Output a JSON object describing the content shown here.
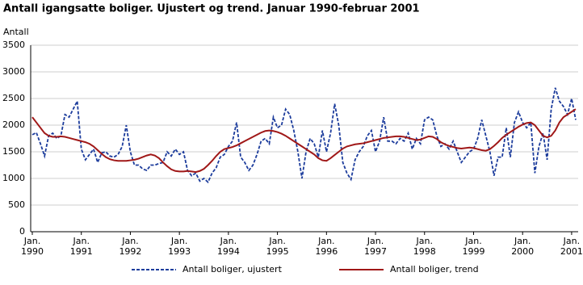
{
  "chart_data": {
    "type": "line",
    "title": "Antall igangsatte boliger. Ujustert og trend. Januar 1990-februar 2001",
    "y_label": "Antall",
    "categories": [
      "Jan. 1990",
      null,
      null,
      null,
      null,
      null,
      null,
      null,
      null,
      null,
      null,
      null,
      "Jan. 1991",
      null,
      null,
      null,
      null,
      null,
      null,
      null,
      null,
      null,
      null,
      null,
      "Jan. 1992",
      null,
      null,
      null,
      null,
      null,
      null,
      null,
      null,
      null,
      null,
      null,
      "Jan. 1993",
      null,
      null,
      null,
      null,
      null,
      null,
      null,
      null,
      null,
      null,
      null,
      "Jan. 1994",
      null,
      null,
      null,
      null,
      null,
      null,
      null,
      null,
      null,
      null,
      null,
      "Jan. 1995",
      null,
      null,
      null,
      null,
      null,
      null,
      null,
      null,
      null,
      null,
      null,
      "Jan. 1996",
      null,
      null,
      null,
      null,
      null,
      null,
      null,
      null,
      null,
      null,
      null,
      "Jan. 1997",
      null,
      null,
      null,
      null,
      null,
      null,
      null,
      null,
      null,
      null,
      null,
      "Jan. 1998",
      null,
      null,
      null,
      null,
      null,
      null,
      null,
      null,
      null,
      null,
      null,
      "Jan. 1999",
      null,
      null,
      null,
      null,
      null,
      null,
      null,
      null,
      null,
      null,
      null,
      "Jan. 2000",
      null,
      null,
      null,
      null,
      null,
      null,
      null,
      null,
      null,
      null,
      null,
      "Jan. 2001",
      null
    ],
    "series": [
      {
        "name": "Antall boliger, ujustert",
        "color": "#1c3c9c",
        "dash": true,
        "values": [
          1820,
          1860,
          1650,
          1420,
          1800,
          1850,
          1750,
          1800,
          2200,
          2150,
          2300,
          2450,
          1550,
          1350,
          1450,
          1550,
          1300,
          1480,
          1500,
          1420,
          1400,
          1450,
          1600,
          2000,
          1500,
          1250,
          1250,
          1180,
          1150,
          1250,
          1250,
          1280,
          1300,
          1500,
          1420,
          1550,
          1450,
          1500,
          1150,
          1050,
          1100,
          950,
          1000,
          930,
          1100,
          1200,
          1400,
          1450,
          1600,
          1700,
          2050,
          1400,
          1300,
          1150,
          1250,
          1450,
          1700,
          1750,
          1650,
          2150,
          1950,
          2000,
          2300,
          2200,
          1900,
          1500,
          1000,
          1500,
          1750,
          1650,
          1400,
          1900,
          1500,
          1850,
          2400,
          2000,
          1300,
          1100,
          980,
          1350,
          1500,
          1600,
          1800,
          1900,
          1500,
          1700,
          2150,
          1700,
          1700,
          1650,
          1750,
          1700,
          1850,
          1550,
          1750,
          1650,
          2100,
          2150,
          2100,
          1800,
          1600,
          1650,
          1550,
          1700,
          1500,
          1300,
          1400,
          1500,
          1550,
          1750,
          2100,
          1800,
          1500,
          1050,
          1400,
          1400,
          1950,
          1400,
          2050,
          2250,
          2050,
          1950,
          2050,
          1100,
          1600,
          1850,
          1350,
          2300,
          2700,
          2450,
          2350,
          2200,
          2500,
          2100
        ]
      },
      {
        "name": "Antall boliger, trend",
        "color": "#a01818",
        "dash": false,
        "values": [
          2150,
          2050,
          1950,
          1850,
          1800,
          1780,
          1780,
          1790,
          1780,
          1760,
          1740,
          1720,
          1700,
          1680,
          1650,
          1600,
          1530,
          1460,
          1400,
          1360,
          1340,
          1330,
          1330,
          1330,
          1340,
          1350,
          1370,
          1400,
          1430,
          1450,
          1430,
          1380,
          1300,
          1230,
          1170,
          1140,
          1130,
          1130,
          1140,
          1130,
          1120,
          1140,
          1180,
          1250,
          1330,
          1420,
          1500,
          1550,
          1570,
          1590,
          1620,
          1660,
          1700,
          1740,
          1780,
          1820,
          1860,
          1890,
          1900,
          1890,
          1870,
          1840,
          1800,
          1750,
          1700,
          1650,
          1600,
          1550,
          1500,
          1450,
          1380,
          1340,
          1330,
          1380,
          1440,
          1500,
          1560,
          1600,
          1620,
          1640,
          1650,
          1660,
          1680,
          1700,
          1720,
          1740,
          1760,
          1770,
          1780,
          1790,
          1790,
          1780,
          1760,
          1740,
          1720,
          1730,
          1760,
          1790,
          1780,
          1740,
          1680,
          1640,
          1610,
          1590,
          1570,
          1560,
          1570,
          1580,
          1570,
          1550,
          1530,
          1520,
          1550,
          1610,
          1680,
          1760,
          1820,
          1870,
          1920,
          1970,
          2010,
          2040,
          2050,
          2000,
          1900,
          1800,
          1770,
          1800,
          1900,
          2050,
          2150,
          2200,
          2250,
          2300
        ]
      }
    ],
    "ylim": [
      0,
      3500
    ],
    "yticks": [
      0,
      500,
      1000,
      1500,
      2000,
      2500,
      3000,
      3500
    ],
    "grid": true
  }
}
